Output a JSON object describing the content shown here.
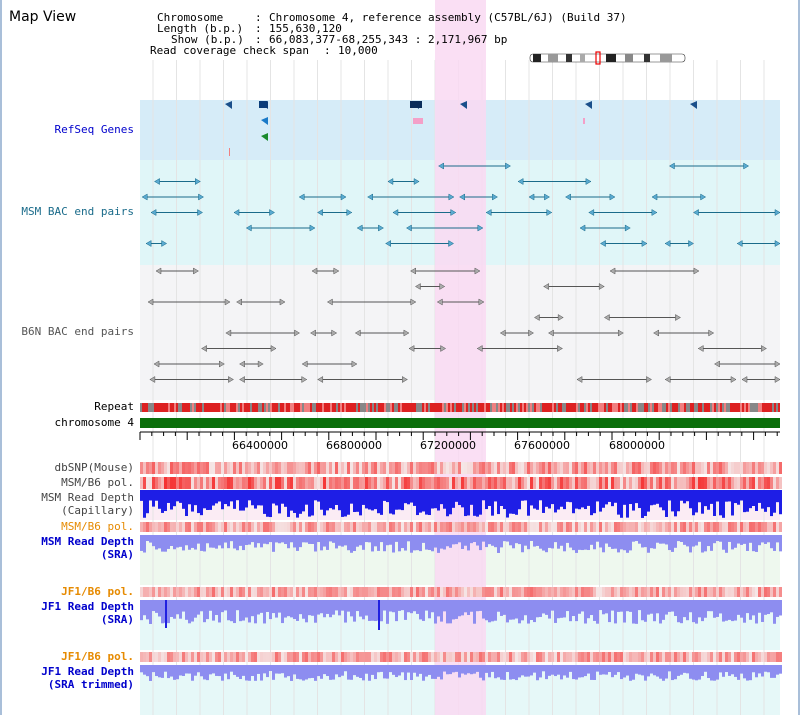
{
  "page": {
    "title": "Map View"
  },
  "info": {
    "chromosome_key": "Chromosome",
    "chromosome_value": "Chromosome 4, reference assembly (C57BL/6J) (Build 37)",
    "length_key": "Length (b.p.)",
    "length_value": "155,630,120",
    "show_key": "Show (b.p.)",
    "show_value": "66,083,377-68,255,343 : 2,171,967 bp",
    "coverage_key": "Read coverage check span",
    "coverage_value": "10,000"
  },
  "tracks": {
    "refseq": "RefSeq Genes",
    "msm_bac": "MSM BAC end pairs",
    "b6n_bac": "B6N BAC end pairs",
    "repeat": "Repeat",
    "chromosome": "chromosome 4",
    "dbsnp": "dbSNP(Mouse)",
    "msm_b6_pol_1": "MSM/B6 pol.",
    "msm_depth_cap_1": "MSM Read Depth",
    "msm_depth_cap_2": "(Capillary)",
    "msm_b6_pol_2": "MSM/B6 pol.",
    "msm_depth_sra_1": "MSM Read Depth",
    "msm_depth_sra_2": "(SRA)",
    "jf1_b6_pol_1": "JF1/B6 pol.",
    "jf1_depth_sra_1": "JF1 Read Depth",
    "jf1_depth_sra_2": "(SRA)",
    "jf1_b6_pol_2": "JF1/B6 pol.",
    "jf1_depth_trim_1": "JF1 Read Depth",
    "jf1_depth_trim_2": "(SRA trimmed)"
  },
  "axis": {
    "ticks": [
      "66400000",
      "66800000",
      "67200000",
      "67600000",
      "68000000"
    ]
  },
  "colors": {
    "blue_label": "#0000cc",
    "teal_label": "#1a6b8a",
    "orange_label": "#e68a00",
    "refseq_bg": "#d6ecf8",
    "msm_bg": "#e0f6f8",
    "b6n_bg": "#f4f4f6",
    "highlight": "#f9d9f2",
    "chromosome_bar": "#0a6e0a",
    "depth_blue": "#1e1ee6",
    "depth_light": "#8d8df0"
  }
}
